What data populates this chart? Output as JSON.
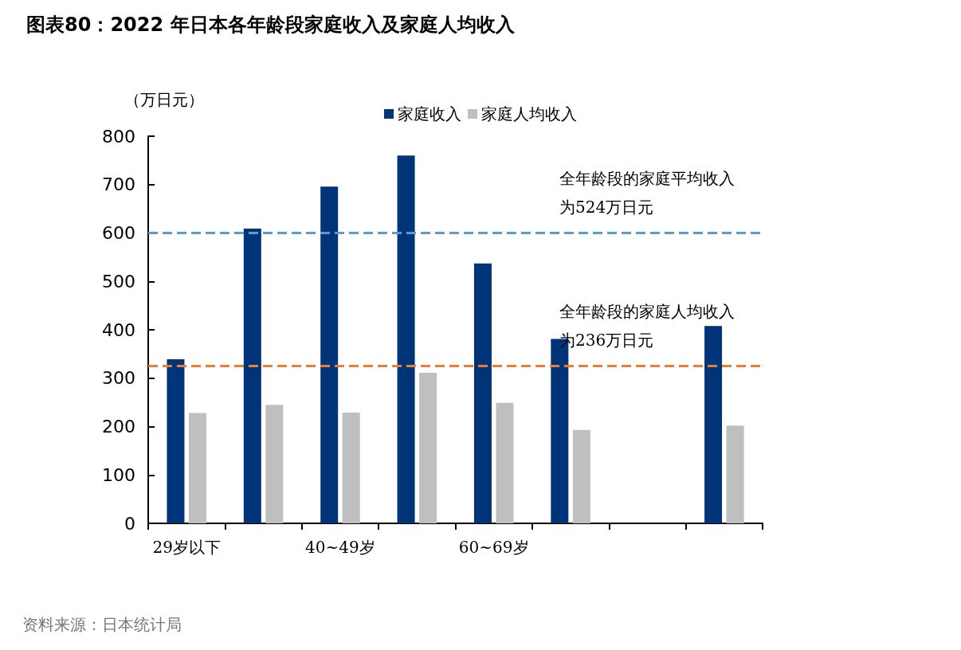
{
  "chart_data": {
    "type": "bar",
    "title": "图表80：2022 年日本各年龄段家庭收入及家庭人均收入",
    "ylabel": "（万日元）",
    "categories": [
      "29岁以下",
      null,
      "40~49岁",
      null,
      "60~69岁",
      null,
      null,
      null
    ],
    "series": [
      {
        "name": "家庭收入",
        "color": "#003478",
        "values": [
          339,
          609,
          696,
          760,
          537,
          381,
          null,
          408
        ]
      },
      {
        "name": "家庭人均收入",
        "color": "#bfbfbf",
        "values": [
          228,
          245,
          229,
          311,
          249,
          193,
          null,
          202
        ]
      }
    ],
    "ylim": [
      0,
      800
    ],
    "yticks": [
      0,
      100,
      200,
      300,
      400,
      500,
      600,
      700,
      800
    ],
    "grid": false,
    "legend": "top",
    "ref_lines": [
      {
        "axis": "y",
        "value": 600,
        "label": "全年龄段的家庭平均收入为524万日元",
        "color": "#5b9bd5",
        "line_style": "dashed"
      },
      {
        "axis": "y",
        "value": 325,
        "label": "全年龄段的家庭人均收入为236万日元",
        "color": "#ed7d31",
        "line_style": "dashed"
      }
    ],
    "annotations": [
      "资料来源：日本统计局"
    ]
  }
}
